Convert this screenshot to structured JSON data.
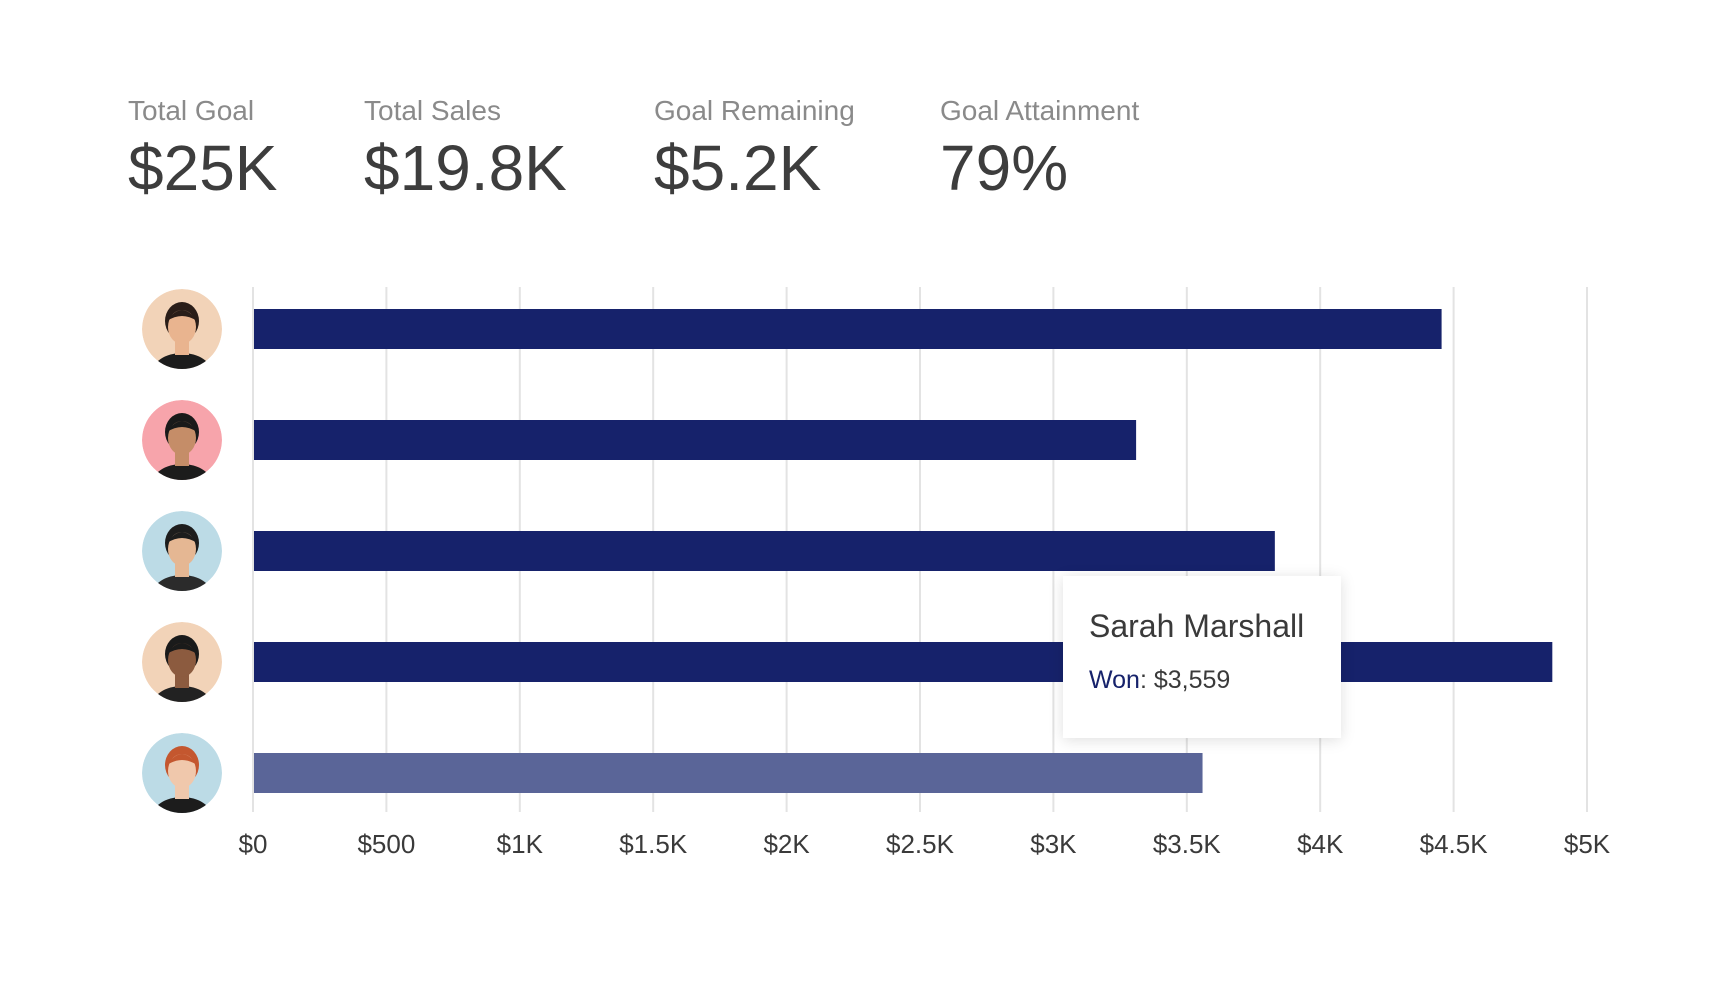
{
  "kpis": [
    {
      "label": "Total Goal",
      "value": "$25K"
    },
    {
      "label": "Total Sales",
      "value": "$19.8K"
    },
    {
      "label": "Goal Remaining",
      "value": "$5.2K"
    },
    {
      "label": "Goal Attainment",
      "value": "79%"
    }
  ],
  "tooltip": {
    "name": "Sarah Marshall",
    "label": "Won",
    "separator": ": ",
    "value": "$3,559"
  },
  "colors": {
    "bar": "#16226b",
    "bar_highlight": "#5a6598",
    "grid": "#e3e3e3",
    "tick_text": "#3a3a3a"
  },
  "chart_data": {
    "type": "bar",
    "orientation": "horizontal",
    "categories": [
      "avatar-1",
      "avatar-2",
      "avatar-3",
      "avatar-4",
      "avatar-5"
    ],
    "series": [
      {
        "values": [
          4455,
          3310,
          3830,
          4870,
          3559
        ]
      }
    ],
    "highlighted_index": 4,
    "xlim": [
      0,
      5000
    ],
    "xticks": [
      0,
      500,
      1000,
      1500,
      2000,
      2500,
      3000,
      3500,
      4000,
      4500,
      5000
    ],
    "xtick_labels": [
      "$0",
      "$500",
      "$1K",
      "$1.5K",
      "$2K",
      "$2.5K",
      "$3K",
      "$3.5K",
      "$4K",
      "$4.5K",
      "$5K"
    ],
    "grid": true,
    "title": "",
    "xlabel": "",
    "ylabel": ""
  },
  "avatars": [
    {
      "icon": "person-avatar-icon",
      "bg": "#f2d3b8",
      "skin": "#e9b48f",
      "hair": "#2a1d18",
      "shirt": "#1c1c1c"
    },
    {
      "icon": "person-avatar-icon",
      "bg": "#f7a4ab",
      "skin": "#c58d68",
      "hair": "#1a1a1a",
      "shirt": "#1c1c1c"
    },
    {
      "icon": "person-avatar-icon",
      "bg": "#bcdbe6",
      "skin": "#e5b793",
      "hair": "#1d1d1d",
      "shirt": "#2b2b2b"
    },
    {
      "icon": "person-avatar-icon",
      "bg": "#f2d3b8",
      "skin": "#8c5b3f",
      "hair": "#1a1a1a",
      "shirt": "#222222"
    },
    {
      "icon": "person-avatar-icon",
      "bg": "#bcdbe6",
      "skin": "#f0c8ac",
      "hair": "#c4572f",
      "shirt": "#1c1c1c"
    }
  ]
}
